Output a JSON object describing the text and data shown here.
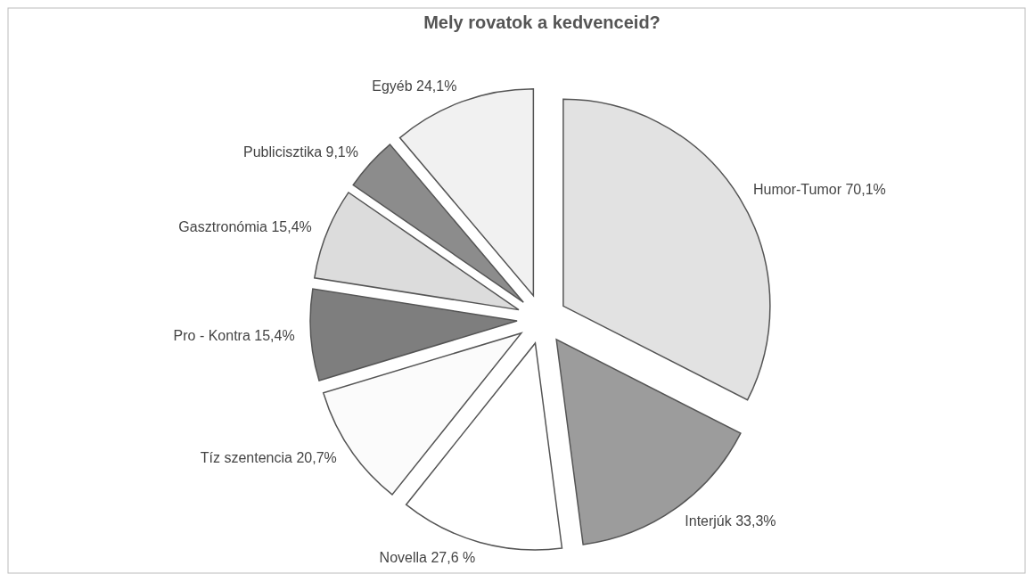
{
  "chart_data": {
    "type": "pie",
    "title": "Mely rovatok a kedvenceid?",
    "categories": [
      "Humor-Tumor",
      "Interjúk",
      "Novella",
      "Tíz szentencia",
      "Pro - Kontra",
      "Gasztronómia",
      "Publicisztika",
      "Egyéb"
    ],
    "values": [
      70.1,
      33.3,
      27.6,
      20.7,
      15.4,
      15.4,
      9.1,
      24.1
    ],
    "value_labels": [
      "70,1%",
      "33,3%",
      "27,6 %",
      "20,7%",
      "15,4%",
      "15,4%",
      "9,1%",
      "24,1%"
    ],
    "colors": [
      "#e2e2e2",
      "#9c9c9c",
      "#ffffff",
      "#fbfbfb",
      "#7e7e7e",
      "#dcdcdc",
      "#8c8c8c",
      "#f1f1f1"
    ],
    "legend": false
  }
}
